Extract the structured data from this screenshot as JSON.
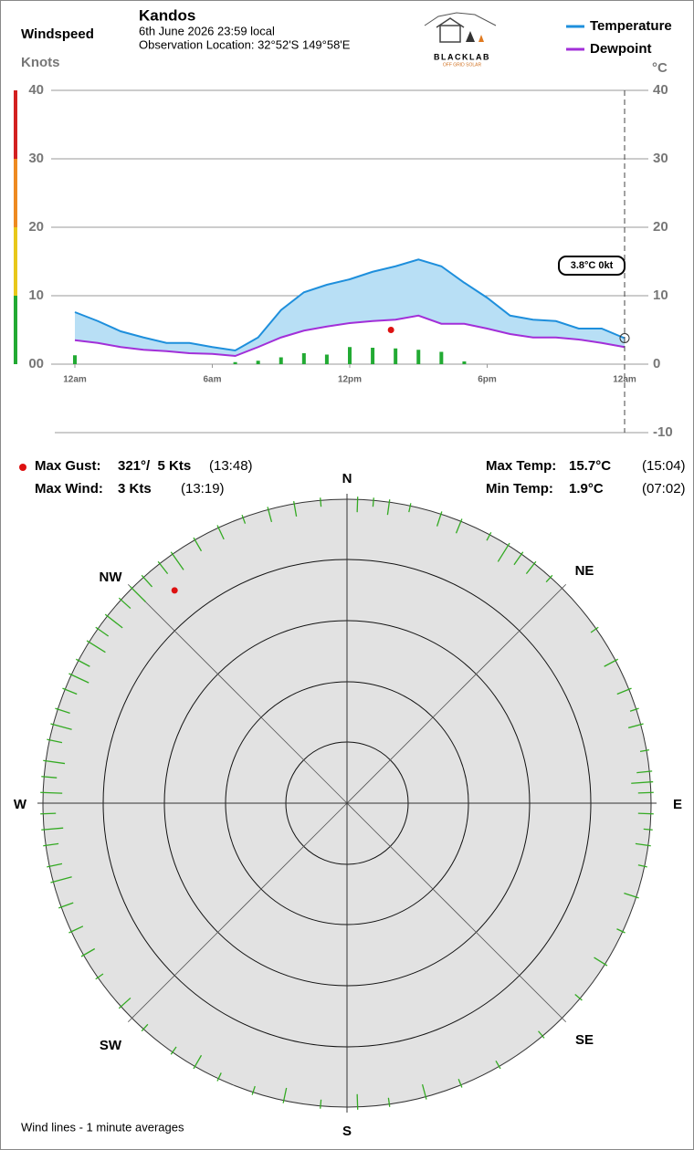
{
  "header": {
    "station": "Kandos",
    "date": "6th June 2026  23:59 local",
    "location": "Observation Location: 32°52'S 149°58'E",
    "logo": "BLACKLAB",
    "logo_sub": "OFF GRID SOLAR"
  },
  "chart_data": [
    {
      "type": "line",
      "ylabel": "Windspeed",
      "yunit": "Knots",
      "y2unit": "°C",
      "x": [
        0,
        1,
        2,
        3,
        4,
        5,
        6,
        7,
        8,
        9,
        10,
        11,
        12,
        13,
        14,
        15,
        16,
        17,
        18,
        19,
        20,
        21,
        22,
        23,
        24
      ],
      "xlim": [
        0,
        24
      ],
      "xticks": [
        {
          "value": 0,
          "label": "12am"
        },
        {
          "value": 6,
          "label": "6am"
        },
        {
          "value": 12,
          "label": "12pm"
        },
        {
          "value": 18,
          "label": "6pm"
        },
        {
          "value": 24,
          "label": "12am"
        }
      ],
      "ylim": [
        0,
        40
      ],
      "yticks": [
        {
          "value": 0,
          "label": "00"
        },
        10,
        20,
        30,
        40
      ],
      "y2lim": [
        -10,
        40
      ],
      "y2ticks": [
        -10,
        0,
        10,
        20,
        30,
        40
      ],
      "grid": true,
      "band_color": "#b8dff5",
      "series": [
        {
          "name": "Temperature",
          "color": "#1e8fdc",
          "axis": "y2",
          "values": [
            7.6,
            6.3,
            4.8,
            3.9,
            3.1,
            3.1,
            2.5,
            2.0,
            3.9,
            7.9,
            10.5,
            11.6,
            12.4,
            13.5,
            14.3,
            15.3,
            14.3,
            11.9,
            9.7,
            7.1,
            6.5,
            6.3,
            5.2,
            5.2,
            3.8
          ]
        },
        {
          "name": "Dewpoint",
          "color": "#a22fd8",
          "axis": "y2",
          "values": [
            3.5,
            3.1,
            2.5,
            2.1,
            1.9,
            1.6,
            1.5,
            1.2,
            2.5,
            3.9,
            4.9,
            5.5,
            6.0,
            6.3,
            6.5,
            7.1,
            5.9,
            5.9,
            5.2,
            4.4,
            3.9,
            3.9,
            3.6,
            3.1,
            2.5
          ]
        }
      ],
      "wind": {
        "color": "#22aa33",
        "values": [
          1.3,
          0,
          0,
          0,
          0,
          0,
          0,
          0.3,
          0.5,
          1.0,
          1.6,
          1.4,
          2.5,
          2.4,
          2.3,
          2.1,
          1.8,
          0.4,
          0,
          0,
          0,
          0,
          0,
          0,
          0
        ]
      },
      "gust": {
        "x": 13.8,
        "y": 5,
        "color": "#dd1111"
      },
      "annotation": "3.8°C  0kt"
    },
    {
      "type": "polar",
      "rlim": [
        0,
        5.55
      ],
      "color": "#33aa22",
      "gust": {
        "direction": 321,
        "speed": 5,
        "color": "#dd1111"
      },
      "wind_directions": [
        2,
        5,
        8,
        12,
        18,
        22,
        28,
        32,
        35,
        38,
        42,
        55,
        62,
        68,
        72,
        75,
        80,
        84,
        86,
        88,
        92,
        95,
        98,
        102,
        108,
        115,
        122,
        130,
        140,
        150,
        158,
        165,
        172,
        178,
        185,
        192,
        198,
        205,
        210,
        215,
        222,
        228,
        235,
        240,
        245,
        250,
        255,
        258,
        262,
        265,
        268,
        272,
        275,
        278,
        282,
        285,
        288,
        292,
        295,
        298,
        302,
        305,
        308,
        312,
        315,
        318,
        322,
        325,
        330,
        335,
        340,
        345,
        350,
        355
      ],
      "wind_speeds": [
        2,
        1,
        2,
        1,
        2,
        2,
        1,
        3,
        2,
        2,
        1,
        1,
        2,
        2,
        1,
        2,
        1,
        2,
        3,
        2,
        2,
        1,
        2,
        1,
        2,
        1,
        2,
        1,
        1,
        1,
        1,
        2,
        1,
        2,
        1,
        2,
        1,
        1,
        2,
        1,
        1,
        2,
        1,
        2,
        2,
        2,
        3,
        2,
        2,
        3,
        2,
        3,
        2,
        3,
        2,
        3,
        2,
        2,
        3,
        2,
        3,
        2,
        3,
        2,
        3,
        2,
        2,
        3,
        2,
        2,
        1,
        2,
        2,
        1
      ],
      "compass": [
        "N",
        "NE",
        "E",
        "SE",
        "S",
        "SW",
        "W",
        "NW"
      ],
      "footnote": "Wind lines - 1 minute averages"
    }
  ],
  "stats": [
    {
      "label": "Max Gust:",
      "value": "321°/  5 Kts",
      "time": "(13:48)"
    },
    {
      "label": "Max Wind:",
      "value": "3 Kts",
      "time": "(13:19)"
    },
    {
      "label": "Max Temp:",
      "value": "15.7°C",
      "time": "(15:04)"
    },
    {
      "label": "Min Temp:",
      "value": "1.9°C",
      "time": "(07:02)"
    }
  ]
}
